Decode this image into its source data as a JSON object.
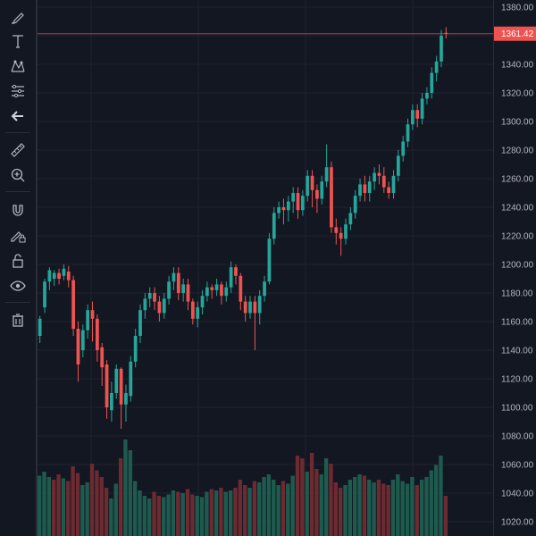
{
  "colors": {
    "background": "#131722",
    "grid": "#1f2330",
    "up": "#26a69a",
    "down": "#ef5350",
    "volume_up": "#1e5b4f",
    "volume_down": "#6d2a31",
    "text": "#b2b5be",
    "price_line": "#ef5350"
  },
  "toolbar": {
    "tools": [
      {
        "name": "brush-icon"
      },
      {
        "name": "text-icon"
      },
      {
        "name": "pattern-icon"
      },
      {
        "name": "fib-retracement-icon"
      },
      {
        "name": "back-arrow-icon"
      },
      {
        "name": "ruler-icon"
      },
      {
        "name": "zoom-in-icon"
      },
      {
        "name": "magnet-icon"
      },
      {
        "name": "lock-drawing-icon"
      },
      {
        "name": "unlock-icon"
      },
      {
        "name": "eye-icon"
      },
      {
        "name": "trash-icon"
      }
    ]
  },
  "price_axis": {
    "labels": [
      "1380.00",
      "1360.00",
      "1340.00",
      "1320.00",
      "1300.00",
      "1280.00",
      "1260.00",
      "1240.00",
      "1220.00",
      "1200.00",
      "1180.00",
      "1160.00",
      "1140.00",
      "1120.00",
      "1100.00",
      "1080.00",
      "1060.00",
      "1040.00",
      "1020.00"
    ],
    "current_price": "1361.42"
  },
  "chart_data": {
    "type": "candlestick",
    "ylim": [
      1010,
      1385
    ],
    "current_price": 1361.42,
    "candles": [
      [
        1150,
        1162,
        1145,
        1164
      ],
      [
        1170,
        1188,
        1166,
        1190
      ],
      [
        1188,
        1196,
        1182,
        1198
      ],
      [
        1190,
        1194,
        1185,
        1196
      ],
      [
        1194,
        1190,
        1186,
        1197
      ],
      [
        1192,
        1197,
        1189,
        1200
      ],
      [
        1195,
        1189,
        1184,
        1199
      ],
      [
        1189,
        1155,
        1150,
        1192
      ],
      [
        1155,
        1130,
        1118,
        1160
      ],
      [
        1140,
        1154,
        1135,
        1158
      ],
      [
        1154,
        1168,
        1148,
        1172
      ],
      [
        1168,
        1162,
        1146,
        1174
      ],
      [
        1162,
        1140,
        1132,
        1165
      ],
      [
        1142,
        1128,
        1115,
        1145
      ],
      [
        1130,
        1100,
        1092,
        1133
      ],
      [
        1098,
        1110,
        1090,
        1118
      ],
      [
        1110,
        1127,
        1106,
        1130
      ],
      [
        1127,
        1102,
        1085,
        1128
      ],
      [
        1102,
        1110,
        1090,
        1116
      ],
      [
        1108,
        1132,
        1104,
        1136
      ],
      [
        1132,
        1150,
        1128,
        1155
      ],
      [
        1150,
        1168,
        1145,
        1172
      ],
      [
        1168,
        1176,
        1162,
        1180
      ],
      [
        1176,
        1180,
        1170,
        1184
      ],
      [
        1180,
        1174,
        1168,
        1184
      ],
      [
        1174,
        1166,
        1160,
        1178
      ],
      [
        1166,
        1176,
        1162,
        1180
      ],
      [
        1176,
        1188,
        1172,
        1192
      ],
      [
        1188,
        1194,
        1182,
        1198
      ],
      [
        1194,
        1180,
        1175,
        1198
      ],
      [
        1180,
        1186,
        1174,
        1190
      ],
      [
        1186,
        1174,
        1168,
        1190
      ],
      [
        1174,
        1162,
        1158,
        1176
      ],
      [
        1162,
        1170,
        1156,
        1174
      ],
      [
        1170,
        1178,
        1165,
        1182
      ],
      [
        1178,
        1184,
        1174,
        1188
      ],
      [
        1184,
        1182,
        1176,
        1186
      ],
      [
        1182,
        1186,
        1178,
        1190
      ],
      [
        1186,
        1178,
        1172,
        1188
      ],
      [
        1178,
        1184,
        1174,
        1188
      ],
      [
        1184,
        1198,
        1180,
        1202
      ],
      [
        1198,
        1192,
        1186,
        1200
      ],
      [
        1192,
        1174,
        1168,
        1194
      ],
      [
        1174,
        1166,
        1160,
        1178
      ],
      [
        1166,
        1174,
        1162,
        1178
      ],
      [
        1174,
        1166,
        1140,
        1178
      ],
      [
        1166,
        1178,
        1158,
        1182
      ],
      [
        1178,
        1188,
        1174,
        1192
      ],
      [
        1188,
        1218,
        1186,
        1222
      ],
      [
        1218,
        1236,
        1214,
        1240
      ],
      [
        1236,
        1240,
        1232,
        1244
      ],
      [
        1240,
        1238,
        1228,
        1246
      ],
      [
        1238,
        1244,
        1230,
        1248
      ],
      [
        1244,
        1250,
        1236,
        1254
      ],
      [
        1250,
        1238,
        1232,
        1254
      ],
      [
        1238,
        1248,
        1234,
        1252
      ],
      [
        1248,
        1262,
        1244,
        1266
      ],
      [
        1262,
        1252,
        1240,
        1266
      ],
      [
        1252,
        1246,
        1236,
        1256
      ],
      [
        1246,
        1258,
        1242,
        1262
      ],
      [
        1258,
        1268,
        1254,
        1284
      ],
      [
        1268,
        1226,
        1222,
        1272
      ],
      [
        1226,
        1222,
        1214,
        1232
      ],
      [
        1222,
        1218,
        1206,
        1226
      ],
      [
        1218,
        1228,
        1214,
        1232
      ],
      [
        1228,
        1236,
        1224,
        1240
      ],
      [
        1236,
        1248,
        1232,
        1252
      ],
      [
        1248,
        1256,
        1244,
        1260
      ],
      [
        1256,
        1250,
        1244,
        1262
      ],
      [
        1250,
        1258,
        1244,
        1262
      ],
      [
        1258,
        1264,
        1252,
        1268
      ],
      [
        1264,
        1262,
        1256,
        1270
      ],
      [
        1262,
        1254,
        1250,
        1268
      ],
      [
        1254,
        1250,
        1246,
        1258
      ],
      [
        1250,
        1262,
        1246,
        1266
      ],
      [
        1262,
        1276,
        1258,
        1280
      ],
      [
        1276,
        1286,
        1272,
        1290
      ],
      [
        1286,
        1298,
        1282,
        1302
      ],
      [
        1298,
        1308,
        1294,
        1312
      ],
      [
        1308,
        1302,
        1296,
        1312
      ],
      [
        1302,
        1316,
        1298,
        1320
      ],
      [
        1316,
        1320,
        1312,
        1324
      ],
      [
        1320,
        1334,
        1316,
        1338
      ],
      [
        1334,
        1342,
        1328,
        1346
      ],
      [
        1342,
        1360,
        1338,
        1364
      ],
      [
        1362,
        1361.42,
        1358,
        1366
      ]
    ],
    "volumes": [
      [
        45,
        1
      ],
      [
        48,
        1
      ],
      [
        44,
        1
      ],
      [
        42,
        0
      ],
      [
        46,
        0
      ],
      [
        43,
        1
      ],
      [
        41,
        0
      ],
      [
        52,
        0
      ],
      [
        47,
        0
      ],
      [
        38,
        1
      ],
      [
        40,
        1
      ],
      [
        54,
        0
      ],
      [
        49,
        0
      ],
      [
        44,
        0
      ],
      [
        36,
        0
      ],
      [
        28,
        1
      ],
      [
        39,
        1
      ],
      [
        58,
        0
      ],
      [
        72,
        1
      ],
      [
        64,
        1
      ],
      [
        41,
        1
      ],
      [
        34,
        1
      ],
      [
        30,
        1
      ],
      [
        28,
        1
      ],
      [
        33,
        0
      ],
      [
        30,
        0
      ],
      [
        29,
        1
      ],
      [
        31,
        1
      ],
      [
        34,
        1
      ],
      [
        33,
        0
      ],
      [
        32,
        1
      ],
      [
        35,
        0
      ],
      [
        31,
        0
      ],
      [
        30,
        1
      ],
      [
        29,
        1
      ],
      [
        33,
        1
      ],
      [
        35,
        0
      ],
      [
        34,
        1
      ],
      [
        36,
        0
      ],
      [
        33,
        1
      ],
      [
        34,
        1
      ],
      [
        36,
        0
      ],
      [
        42,
        0
      ],
      [
        38,
        0
      ],
      [
        36,
        1
      ],
      [
        41,
        0
      ],
      [
        40,
        1
      ],
      [
        44,
        1
      ],
      [
        46,
        1
      ],
      [
        42,
        1
      ],
      [
        38,
        1
      ],
      [
        41,
        0
      ],
      [
        39,
        1
      ],
      [
        45,
        1
      ],
      [
        60,
        0
      ],
      [
        58,
        0
      ],
      [
        48,
        1
      ],
      [
        62,
        0
      ],
      [
        50,
        0
      ],
      [
        46,
        1
      ],
      [
        58,
        1
      ],
      [
        54,
        0
      ],
      [
        40,
        0
      ],
      [
        36,
        0
      ],
      [
        38,
        1
      ],
      [
        42,
        1
      ],
      [
        44,
        1
      ],
      [
        46,
        1
      ],
      [
        45,
        0
      ],
      [
        42,
        1
      ],
      [
        40,
        1
      ],
      [
        42,
        0
      ],
      [
        39,
        0
      ],
      [
        38,
        0
      ],
      [
        42,
        1
      ],
      [
        46,
        1
      ],
      [
        41,
        1
      ],
      [
        39,
        1
      ],
      [
        44,
        1
      ],
      [
        38,
        0
      ],
      [
        42,
        1
      ],
      [
        44,
        1
      ],
      [
        49,
        1
      ],
      [
        53,
        1
      ],
      [
        60,
        1
      ],
      [
        30,
        0
      ]
    ]
  }
}
